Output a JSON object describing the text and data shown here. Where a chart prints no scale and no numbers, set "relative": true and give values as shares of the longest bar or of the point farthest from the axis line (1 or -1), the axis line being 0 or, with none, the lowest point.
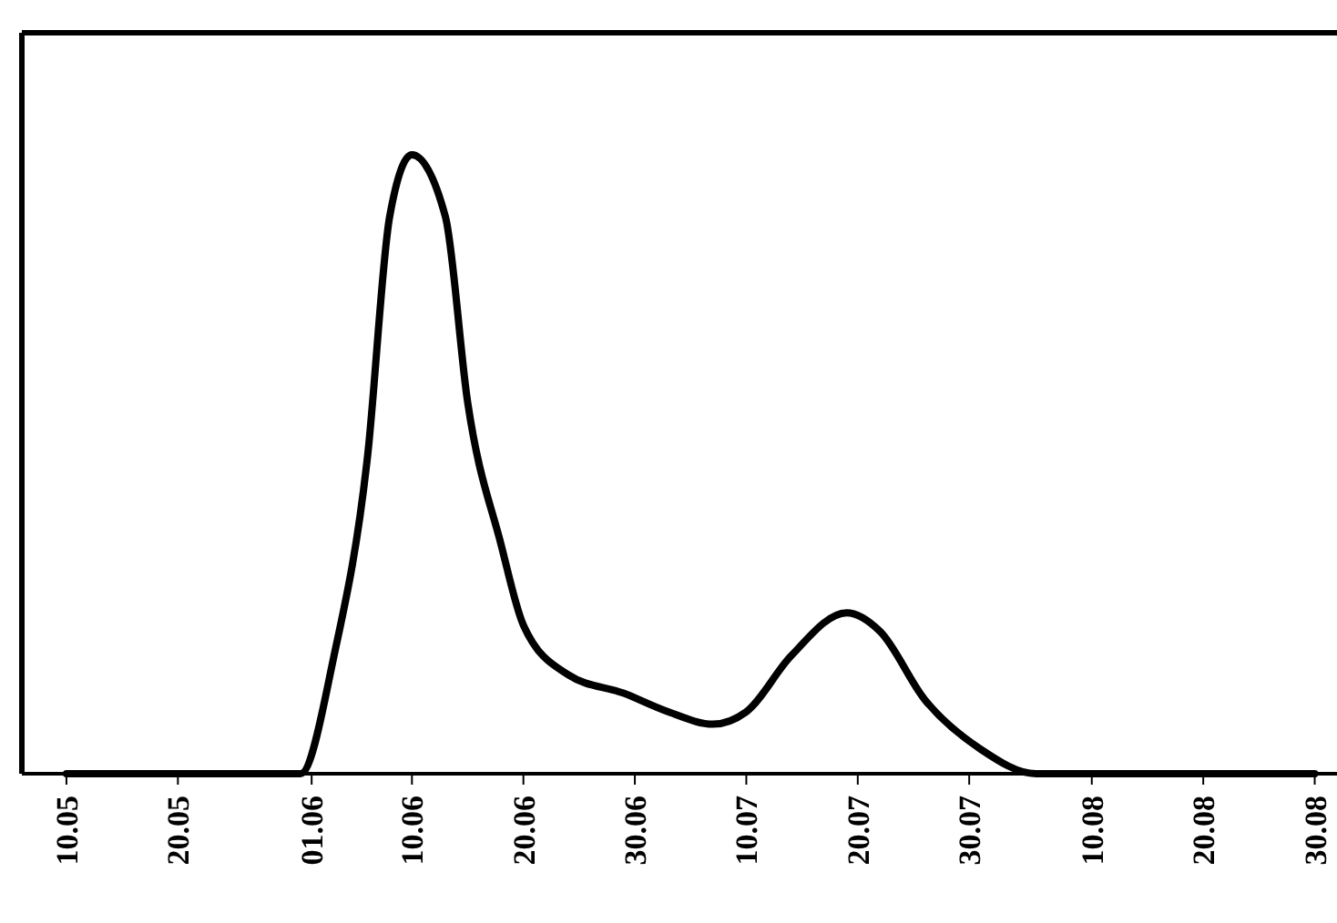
{
  "chart_data": {
    "type": "line",
    "relative": true,
    "x": [
      "--05-10",
      "--05-20",
      "--05-31",
      "--06-03",
      "--06-06",
      "--06-08",
      "--06-10",
      "--06-13",
      "--06-15",
      "--06-18",
      "--06-20",
      "--06-24",
      "--06-29",
      "--07-03",
      "--07-07",
      "--07-10",
      "--07-14",
      "--07-19",
      "--07-22",
      "--07-26",
      "--07-31",
      "--08-05",
      "--08-10",
      "--08-30"
    ],
    "series": [
      {
        "color": "#000000",
        "values": [
          0,
          0,
          0,
          0.19,
          0.51,
          0.9,
          1,
          0.9,
          0.6,
          0.37,
          0.24,
          0.16,
          0.13,
          0.1,
          0.08,
          0.1,
          0.19,
          0.26,
          0.23,
          0.12,
          0.04,
          0,
          0,
          0
        ]
      }
    ],
    "xlim": [
      "--05-06",
      "--09-01"
    ],
    "xticks": [
      {
        "value": "--05-10",
        "label": "10.05"
      },
      {
        "value": "--05-20",
        "label": "20.05"
      },
      {
        "value": "--06-01",
        "label": "01.06"
      },
      {
        "value": "--06-10",
        "label": "10.06"
      },
      {
        "value": "--06-20",
        "label": "20.06"
      },
      {
        "value": "--06-30",
        "label": "30.06"
      },
      {
        "value": "--07-10",
        "label": "10.07"
      },
      {
        "value": "--07-20",
        "label": "20.07"
      },
      {
        "value": "--07-30",
        "label": "30.07"
      },
      {
        "value": "--08-10",
        "label": "10.08"
      },
      {
        "value": "--08-20",
        "label": "20.08"
      },
      {
        "value": "--08-30",
        "label": "30.08"
      }
    ],
    "marker": "none",
    "line_style": "solid"
  }
}
